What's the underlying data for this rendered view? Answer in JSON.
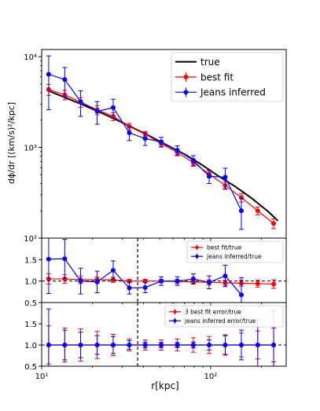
{
  "chart_data": [
    {
      "type": "line",
      "panel": "top",
      "ylabel": "dϕ/dr [(km/s)²/kpc]",
      "yscale": "log",
      "xscale": "log",
      "xlim": [
        10,
        280
      ],
      "ylim": [
        100,
        12000
      ],
      "y_ticks": [
        {
          "v": 100,
          "label": "10²"
        },
        {
          "v": 1000,
          "label": "10³"
        },
        {
          "v": 10000,
          "label": "10⁴"
        }
      ],
      "legend_position": "top-right",
      "series": [
        {
          "name": "true",
          "color": "#000000",
          "style": "line",
          "x": [
            11,
            14,
            17.5,
            22,
            28,
            35,
            44,
            55,
            70,
            88,
            110,
            140,
            175,
            220,
            250
          ],
          "y": [
            4200,
            3500,
            2950,
            2450,
            2000,
            1630,
            1320,
            1060,
            840,
            650,
            490,
            370,
            275,
            195,
            155
          ]
        },
        {
          "name": "best fit",
          "color": "#ff0000",
          "style": "errorbar",
          "x": [
            11,
            13.7,
            17,
            21.3,
            26.5,
            33,
            41,
            51,
            63.5,
            79,
            98,
            122,
            152,
            190,
            236
          ],
          "y": [
            4350,
            3800,
            3150,
            2600,
            2200,
            1700,
            1400,
            1100,
            880,
            680,
            510,
            380,
            280,
            200,
            145
          ],
          "err": [
            600,
            450,
            380,
            300,
            220,
            140,
            100,
            80,
            70,
            60,
            45,
            35,
            30,
            20,
            18
          ]
        },
        {
          "name": "Jeans inferred",
          "color": "#0000ff",
          "style": "errorbar",
          "x": [
            11,
            13.7,
            17,
            21.3,
            26.5,
            33,
            41,
            51,
            63.5,
            79,
            98,
            122,
            152
          ],
          "y": [
            6400,
            5600,
            3200,
            2500,
            2750,
            1450,
            1250,
            1150,
            930,
            720,
            480,
            470,
            200
          ],
          "err": [
            3800,
            2000,
            1000,
            700,
            650,
            260,
            200,
            140,
            110,
            90,
            80,
            120,
            75
          ]
        }
      ]
    },
    {
      "type": "line",
      "panel": "middle",
      "xscale": "log",
      "xlim": [
        10,
        280
      ],
      "ylim": [
        0.5,
        2.0
      ],
      "y_ticks": [
        {
          "v": 0.5,
          "label": "0.5"
        },
        {
          "v": 1.0,
          "label": "1.0"
        },
        {
          "v": 1.5,
          "label": "1.5"
        }
      ],
      "hline": 1.0,
      "vline": 37,
      "legend_position": "top-right",
      "series": [
        {
          "name": "best fit/true",
          "color": "#ff0000",
          "style": "errorbar",
          "x": [
            11,
            13.7,
            17,
            21.3,
            26.5,
            33,
            41,
            51,
            63.5,
            79,
            98,
            122,
            152,
            190,
            236
          ],
          "y": [
            1.05,
            1.05,
            1.03,
            1.03,
            1.03,
            1.0,
            1.0,
            1.0,
            0.99,
            0.98,
            0.97,
            0.96,
            0.95,
            0.94,
            0.93
          ],
          "err": [
            0.12,
            0.1,
            0.09,
            0.07,
            0.06,
            0.04,
            0.04,
            0.04,
            0.05,
            0.05,
            0.06,
            0.06,
            0.07,
            0.08,
            0.1
          ]
        },
        {
          "name": "jeans inferred/true",
          "color": "#0000ff",
          "style": "errorbar",
          "x": [
            11,
            13.7,
            17,
            21.3,
            26.5,
            33,
            41,
            51,
            63.5,
            79,
            98,
            122,
            152
          ],
          "y": [
            1.51,
            1.52,
            1.0,
            0.98,
            1.25,
            0.84,
            0.85,
            1.0,
            1.0,
            1.05,
            0.97,
            1.12,
            0.68
          ],
          "err": [
            0.8,
            0.45,
            0.3,
            0.25,
            0.22,
            0.14,
            0.12,
            0.1,
            0.1,
            0.12,
            0.15,
            0.25,
            0.4
          ]
        }
      ]
    },
    {
      "type": "line",
      "panel": "bottom",
      "xlabel": "r[kpc]",
      "xscale": "log",
      "xlim": [
        10,
        280
      ],
      "ylim": [
        0.5,
        2.0
      ],
      "y_ticks": [
        {
          "v": 0.5,
          "label": "0.5"
        },
        {
          "v": 1.0,
          "label": "1.0"
        },
        {
          "v": 1.5,
          "label": "1.5"
        }
      ],
      "x_ticks": [
        {
          "v": 10,
          "label": "10¹"
        },
        {
          "v": 100,
          "label": "10²"
        }
      ],
      "hline": 1.0,
      "vline": 37,
      "legend_position": "top-right",
      "series": [
        {
          "name": "3 best fit error/true",
          "color": "#ff0000",
          "style": "errorbar",
          "x": [
            11,
            13.7,
            17,
            21.3,
            26.5,
            33,
            41,
            51,
            63.5,
            79,
            98,
            122,
            152,
            190,
            236
          ],
          "y": [
            1.0,
            1.0,
            1.0,
            1.0,
            1.0,
            1.0,
            1.0,
            1.0,
            1.0,
            1.0,
            1.0,
            1.0,
            1.0,
            1.0,
            1.0
          ],
          "err": [
            0.45,
            0.4,
            0.38,
            0.32,
            0.25,
            0.14,
            0.12,
            0.12,
            0.14,
            0.17,
            0.2,
            0.24,
            0.28,
            0.33,
            0.4
          ]
        },
        {
          "name": "jeans inferred error/true",
          "color": "#0000ff",
          "style": "errorbar",
          "x": [
            11,
            13.7,
            17,
            21.3,
            26.5,
            33,
            41,
            51,
            63.5,
            79,
            98,
            122,
            152,
            190,
            236
          ],
          "y": [
            1.0,
            1.0,
            1.0,
            1.0,
            1.0,
            1.0,
            1.0,
            1.0,
            1.0,
            1.0,
            1.0,
            1.0,
            1.0,
            1.0,
            1.0
          ],
          "err": [
            0.85,
            0.35,
            0.3,
            0.22,
            0.2,
            0.1,
            0.07,
            0.06,
            0.06,
            0.07,
            0.12,
            0.22,
            0.35,
            0.6,
            0.8
          ]
        }
      ]
    }
  ]
}
